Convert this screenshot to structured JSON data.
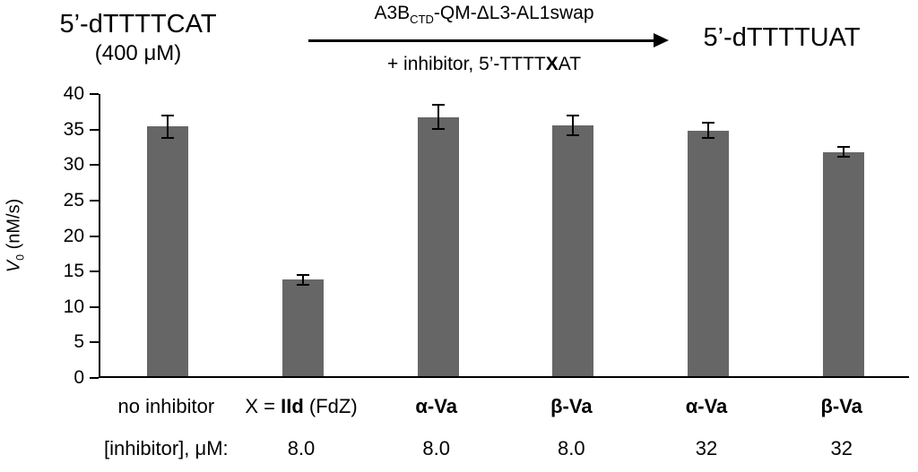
{
  "header": {
    "substrate": {
      "sequence": "5’-dTTTTCAT",
      "concentration": "(400 μM)"
    },
    "reaction": {
      "enzyme_pre": "A3B",
      "enzyme_sub": "CTD",
      "enzyme_post": "-QM-ΔL3-AL1swap",
      "condition_pre": "+ inhibitor, 5’-TTTT",
      "condition_bold": "X",
      "condition_post": "AT"
    },
    "product": {
      "sequence": "5’-dTTTTUAT"
    }
  },
  "chart_data": {
    "type": "bar",
    "title": "",
    "ylabel": "V0 (nM/s)",
    "ylabel_parts": {
      "pre": "V",
      "sub": "0",
      "post": " (nM/s)"
    },
    "ylim": [
      0,
      40
    ],
    "yticks": [
      0,
      5,
      10,
      15,
      20,
      25,
      30,
      35,
      40
    ],
    "grid": false,
    "legend": null,
    "bar_color": "#666666",
    "categories": [
      "no inhibitor",
      "X = IId (FdZ)",
      "α-Va",
      "β-Va",
      "α-Va",
      "β-Va"
    ],
    "values": [
      35.2,
      13.6,
      36.5,
      35.3,
      34.6,
      31.6
    ],
    "errors": [
      1.7,
      0.8,
      1.8,
      1.5,
      1.2,
      0.8
    ],
    "x_label_parts": [
      [
        {
          "text": "no inhibitor",
          "bold": false
        }
      ],
      [
        {
          "text": "X = ",
          "bold": false
        },
        {
          "text": "IId",
          "bold": true
        },
        {
          "text": " (FdZ)",
          "bold": false
        }
      ],
      [
        {
          "text": "α-Va",
          "bold": true
        }
      ],
      [
        {
          "text": "β-Va",
          "bold": true
        }
      ],
      [
        {
          "text": "α-Va",
          "bold": true
        }
      ],
      [
        {
          "text": "β-Va",
          "bold": true
        }
      ]
    ],
    "inhibitor_row": {
      "label": "[inhibitor], μM:",
      "values": [
        "",
        "8.0",
        "8.0",
        "8.0",
        "32",
        "32"
      ]
    }
  }
}
